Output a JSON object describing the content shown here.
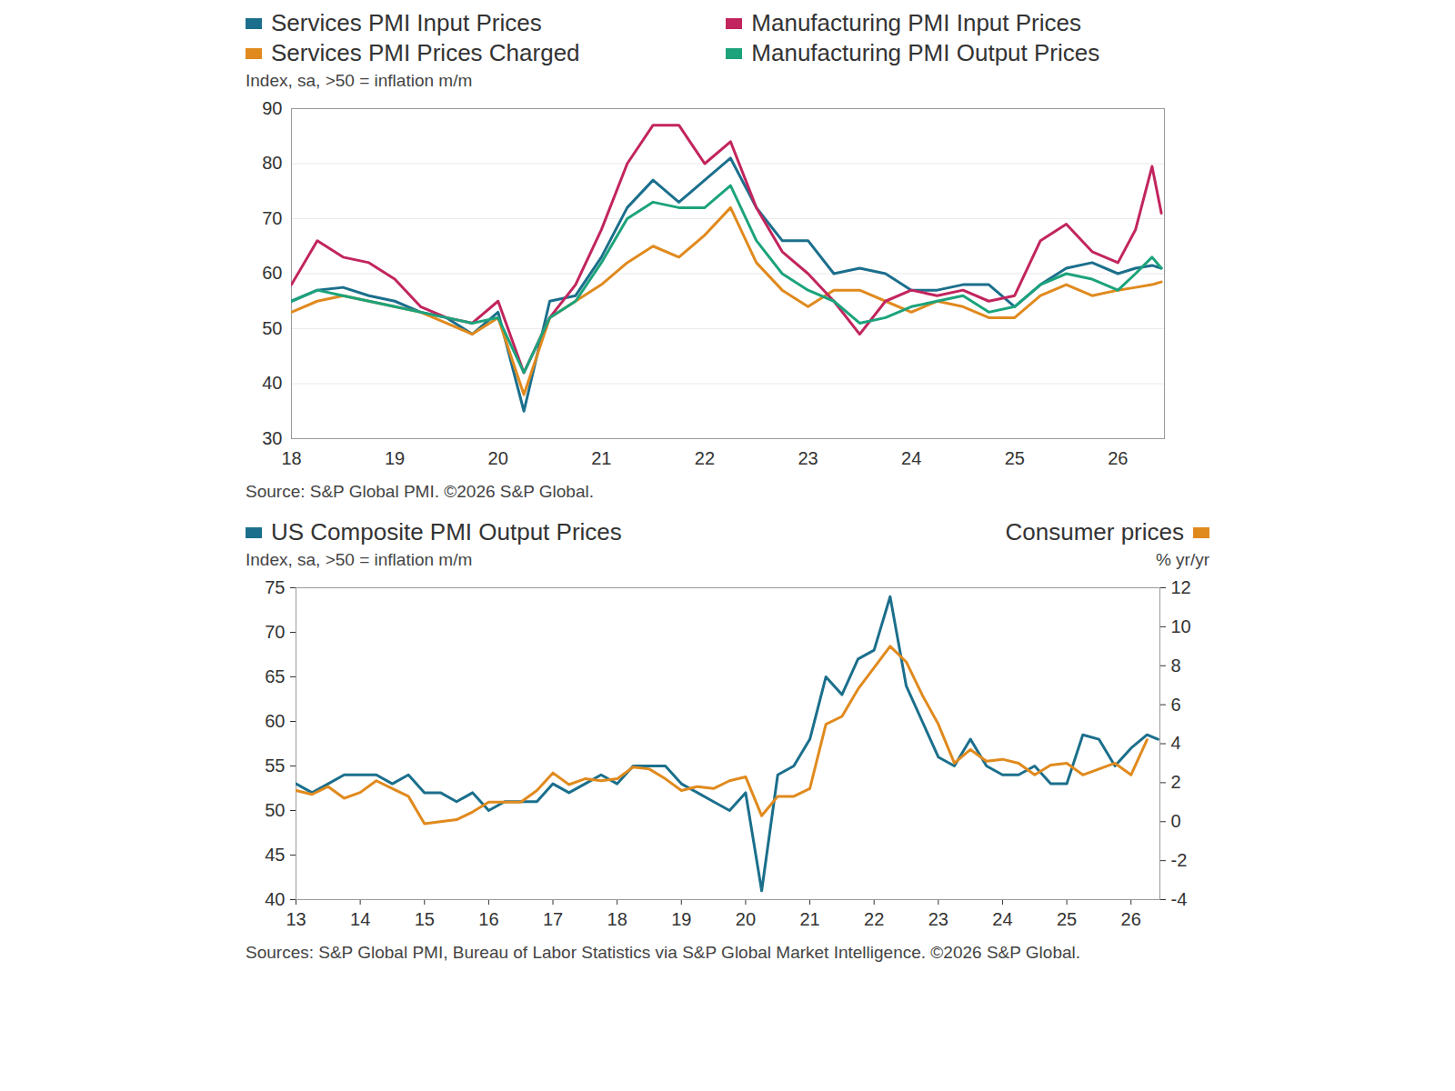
{
  "chart_data": [
    {
      "type": "line",
      "legend": "top",
      "ylabel": "Index, sa, >50 = inflation m/m",
      "source": "Source: S&P Global PMI. ©2026 S&P Global.",
      "x": [
        2018,
        2018.25,
        2018.5,
        2018.75,
        2019,
        2019.25,
        2019.5,
        2019.75,
        2020,
        2020.25,
        2020.5,
        2020.75,
        2021,
        2021.25,
        2021.5,
        2021.75,
        2022,
        2022.25,
        2022.5,
        2022.75,
        2023,
        2023.25,
        2023.5,
        2023.75,
        2024,
        2024.25,
        2024.5,
        2024.75,
        2025,
        2025.25,
        2025.5,
        2025.75,
        2026,
        2026.17,
        2026.33,
        2026.42
      ],
      "xlim": [
        2018,
        2026.45
      ],
      "xticks": [
        {
          "value": 2018,
          "label": "18"
        },
        {
          "value": 2019,
          "label": "19"
        },
        {
          "value": 2020,
          "label": "20"
        },
        {
          "value": 2021,
          "label": "21"
        },
        {
          "value": 2022,
          "label": "22"
        },
        {
          "value": 2023,
          "label": "23"
        },
        {
          "value": 2024,
          "label": "24"
        },
        {
          "value": 2025,
          "label": "25"
        },
        {
          "value": 2026,
          "label": "26"
        }
      ],
      "ylim": [
        30,
        90
      ],
      "yticks": [
        30,
        40,
        50,
        60,
        70,
        80,
        90
      ],
      "grid": true,
      "series": [
        {
          "name": "Services PMI Input Prices",
          "color": "#1b6f8c",
          "values": [
            55,
            57,
            57.5,
            56,
            55,
            53,
            52,
            49,
            53,
            35,
            55,
            56,
            63,
            72,
            77,
            73,
            77,
            81,
            72,
            66,
            66,
            60,
            61,
            60,
            57,
            57,
            58,
            58,
            54,
            58,
            61,
            62,
            60,
            61,
            61.5,
            61
          ]
        },
        {
          "name": "Services PMI Prices Charged",
          "color": "#e08a1e",
          "values": [
            53,
            55,
            56,
            55,
            54,
            53,
            51,
            49,
            52,
            38,
            52,
            55,
            58,
            62,
            65,
            63,
            67,
            72,
            62,
            57,
            54,
            57,
            57,
            55,
            53,
            55,
            54,
            52,
            52,
            56,
            58,
            56,
            57,
            57.5,
            58,
            58.5
          ]
        },
        {
          "name": "Manufacturing PMI Input Prices",
          "color": "#c2255e",
          "values": [
            58,
            66,
            63,
            62,
            59,
            54,
            52,
            51,
            55,
            42,
            52,
            58,
            68,
            80,
            87,
            87,
            80,
            84,
            72,
            64,
            60,
            55,
            49,
            55,
            57,
            56,
            57,
            55,
            56,
            66,
            69,
            64,
            62,
            68,
            79.5,
            71
          ]
        },
        {
          "name": "Manufacturing PMI Output Prices",
          "color": "#1ca37c",
          "values": [
            55,
            57,
            56,
            55,
            54,
            53,
            52,
            51,
            52,
            42,
            52,
            55,
            62,
            70,
            73,
            72,
            72,
            76,
            66,
            60,
            57,
            55,
            51,
            52,
            54,
            55,
            56,
            53,
            54,
            58,
            60,
            59,
            57,
            60,
            63,
            61
          ]
        }
      ]
    },
    {
      "type": "line",
      "legend": "top",
      "ylabel": "Index, sa, >50 = inflation m/m",
      "y2label": "% yr/yr",
      "source": "Sources: S&P Global PMI, Bureau of Labor Statistics via S&P Global Market Intelligence. ©2026 S&P Global.",
      "x": [
        2013,
        2013.25,
        2013.5,
        2013.75,
        2014,
        2014.25,
        2014.5,
        2014.75,
        2015,
        2015.25,
        2015.5,
        2015.75,
        2016,
        2016.25,
        2016.5,
        2016.75,
        2017,
        2017.25,
        2017.5,
        2017.75,
        2018,
        2018.25,
        2018.5,
        2018.75,
        2019,
        2019.25,
        2019.5,
        2019.75,
        2020,
        2020.25,
        2020.5,
        2020.75,
        2021,
        2021.25,
        2021.5,
        2021.75,
        2022,
        2022.25,
        2022.5,
        2022.75,
        2023,
        2023.25,
        2023.5,
        2023.75,
        2024,
        2024.25,
        2024.5,
        2024.75,
        2025,
        2025.25,
        2025.5,
        2025.75,
        2026,
        2026.25,
        2026.42
      ],
      "xlim": [
        2013,
        2026.45
      ],
      "xticks": [
        {
          "value": 2013,
          "label": "13"
        },
        {
          "value": 2014,
          "label": "14"
        },
        {
          "value": 2015,
          "label": "15"
        },
        {
          "value": 2016,
          "label": "16"
        },
        {
          "value": 2017,
          "label": "17"
        },
        {
          "value": 2018,
          "label": "18"
        },
        {
          "value": 2019,
          "label": "19"
        },
        {
          "value": 2020,
          "label": "20"
        },
        {
          "value": 2021,
          "label": "21"
        },
        {
          "value": 2022,
          "label": "22"
        },
        {
          "value": 2023,
          "label": "23"
        },
        {
          "value": 2024,
          "label": "24"
        },
        {
          "value": 2025,
          "label": "25"
        },
        {
          "value": 2026,
          "label": "26"
        }
      ],
      "ylim": [
        40,
        75
      ],
      "yticks": [
        40,
        45,
        50,
        55,
        60,
        65,
        70,
        75
      ],
      "y2lim": [
        -4,
        12
      ],
      "y2ticks": [
        -4,
        -2,
        0,
        2,
        4,
        6,
        8,
        10,
        12
      ],
      "grid": false,
      "series": [
        {
          "name": "US Composite PMI Output Prices",
          "color": "#1b6f8c",
          "values": [
            53,
            52,
            53,
            54,
            54,
            54,
            53,
            54,
            52,
            52,
            51,
            52,
            50,
            51,
            51,
            51,
            53,
            52,
            53,
            54,
            53,
            55,
            55,
            55,
            53,
            52,
            51,
            50,
            52,
            41,
            54,
            55,
            58,
            65,
            63,
            67,
            68,
            74,
            64,
            60,
            56,
            55,
            58,
            55,
            54,
            54,
            55,
            53,
            53,
            58.5,
            58,
            55,
            57,
            58.5,
            58
          ]
        },
        {
          "name": "Consumer prices",
          "color": "#e08a1e",
          "axis": "y2",
          "values": [
            1.6,
            1.4,
            1.8,
            1.2,
            1.5,
            2.1,
            1.7,
            1.3,
            -0.1,
            0,
            0.1,
            0.5,
            1.0,
            1.0,
            1.0,
            1.6,
            2.5,
            1.9,
            2.2,
            2.1,
            2.2,
            2.8,
            2.7,
            2.2,
            1.6,
            1.8,
            1.7,
            2.1,
            2.3,
            0.3,
            1.3,
            1.3,
            1.7,
            5.0,
            5.4,
            6.8,
            7.9,
            9.0,
            8.2,
            6.5,
            5.0,
            3.0,
            3.7,
            3.1,
            3.2,
            3.0,
            2.4,
            2.9,
            3.0,
            2.4,
            2.7,
            3.0,
            2.4,
            4.2,
            null
          ]
        }
      ]
    }
  ]
}
